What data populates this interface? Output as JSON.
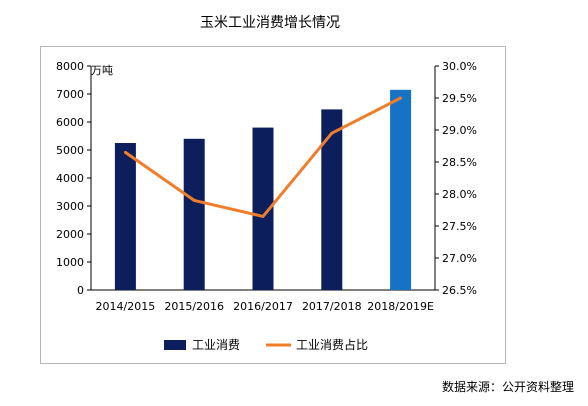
{
  "chart_data": {
    "type": "bar",
    "title": "玉米工业消费增长情况",
    "categories": [
      "2014/2015",
      "2015/2016",
      "2016/2017",
      "2017/2018",
      "2018/2019E"
    ],
    "left_axis": {
      "unit": "万吨",
      "ylim": [
        0,
        8000
      ],
      "ticks": [
        "0",
        "1000",
        "2000",
        "3000",
        "4000",
        "5000",
        "6000",
        "7000",
        "8000"
      ]
    },
    "right_axis": {
      "ylim": [
        26.5,
        30.0
      ],
      "ticks": [
        "26.5%",
        "27.0%",
        "27.5%",
        "28.0%",
        "28.5%",
        "29.0%",
        "29.5%",
        "30.0%"
      ]
    },
    "series": [
      {
        "name": "工业消费",
        "type": "bar",
        "axis": "left",
        "values": [
          5250,
          5400,
          5800,
          6450,
          7150
        ],
        "colors": [
          "#0c1f5c",
          "#0c1f5c",
          "#0c1f5c",
          "#0c1f5c",
          "#1672c4"
        ]
      },
      {
        "name": "工业消费占比",
        "type": "line",
        "axis": "right",
        "values": [
          28.65,
          27.9,
          27.65,
          28.95,
          29.5
        ],
        "color": "#f07d2a"
      }
    ],
    "grid": false,
    "legend_position": "bottom"
  },
  "source_note": "数据来源：公开资料整理"
}
